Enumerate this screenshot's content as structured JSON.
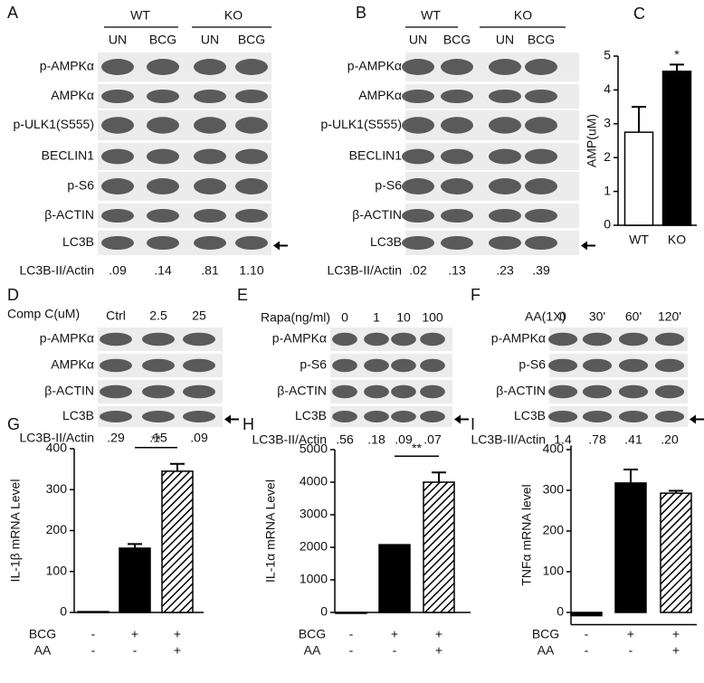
{
  "blots": [
    {
      "letter": "A",
      "groups": [
        "WT",
        "KO"
      ],
      "lanes": [
        "UN",
        "BCG",
        "UN",
        "BCG"
      ],
      "rows": [
        "p-AMPKα",
        "AMPKα",
        "p-ULK1(S555)",
        "BECLIN1",
        "p-S6",
        "β-ACTIN",
        "LC3B"
      ],
      "quant_label": "LC3B-II/Actin",
      "quant": [
        ".09",
        ".14",
        ".81",
        "1.10"
      ]
    },
    {
      "letter": "B",
      "groups": [
        "WT",
        "KO"
      ],
      "lanes": [
        "UN",
        "BCG",
        "UN",
        "BCG"
      ],
      "rows": [
        "p-AMPKα",
        "AMPKα",
        "p-ULK1(S555)",
        "BECLIN1",
        "p-S6",
        "β-ACTIN",
        "LC3B"
      ],
      "quant_label": "LC3B-II/Actin",
      "quant": [
        ".02",
        ".13",
        ".23",
        ".39"
      ]
    },
    {
      "letter": "D",
      "treatment": "Comp C(uM)",
      "lanes": [
        "Ctrl",
        "2.5",
        "25"
      ],
      "rows": [
        "p-AMPKα",
        "AMPKα",
        "β-ACTIN",
        "LC3B"
      ],
      "quant_label": "LC3B-II/Actin",
      "quant": [
        ".29",
        ".15",
        ".09"
      ]
    },
    {
      "letter": "E",
      "treatment": "Rapa(ng/ml)",
      "lanes": [
        "0",
        "1",
        "10",
        "100"
      ],
      "rows": [
        "p-AMPKα",
        "p-S6",
        "β-ACTIN",
        "LC3B"
      ],
      "quant_label": "LC3B-II/Actin",
      "quant": [
        ".56",
        ".18",
        ".09",
        ".07"
      ]
    },
    {
      "letter": "F",
      "treatment": "AA(1X)",
      "lanes": [
        "0",
        "30'",
        "60'",
        "120'"
      ],
      "rows": [
        "p-AMPKα",
        "p-S6",
        "β-ACTIN",
        "LC3B"
      ],
      "quant_label": "LC3B-II/Actin",
      "quant": [
        "1.4",
        ".78",
        ".41",
        ".20"
      ]
    }
  ],
  "chart_data": [
    {
      "type": "bar",
      "panel": "C",
      "y_label": "AMP(uM)",
      "categories": [
        "WT",
        "KO"
      ],
      "values": [
        2.75,
        4.55
      ],
      "errors": [
        0.75,
        0.2
      ],
      "colors": [
        "#ffffff",
        "#000000"
      ],
      "hatched": [
        false,
        false
      ],
      "annotation": "*",
      "ylim": [
        0,
        5
      ],
      "yticks": [
        0,
        1,
        2,
        3,
        4,
        5
      ]
    },
    {
      "type": "bar",
      "panel": "G",
      "y_label": "IL-1β mRNA Level",
      "categories": [
        null,
        null,
        null
      ],
      "values": [
        2,
        157,
        345
      ],
      "errors": [
        null,
        10,
        18
      ],
      "colors": [
        "#000000",
        "#000000",
        "#000000"
      ],
      "hatched": [
        false,
        false,
        true
      ],
      "conditions": [
        {
          "name": "BCG",
          "values": [
            "-",
            "+",
            "+"
          ]
        },
        {
          "name": "AA",
          "values": [
            "-",
            "-",
            "+"
          ]
        }
      ],
      "annotation": "**",
      "ylim": [
        0,
        400
      ],
      "yticks": [
        0,
        100,
        200,
        300,
        400
      ]
    },
    {
      "type": "bar",
      "panel": "H",
      "y_label": "IL-1α mRNA Level",
      "categories": [
        null,
        null,
        null
      ],
      "values": [
        0,
        2080,
        4000
      ],
      "errors": [
        null,
        null,
        300
      ],
      "colors": [
        "#000000",
        "#000000",
        "#000000"
      ],
      "hatched": [
        false,
        false,
        true
      ],
      "conditions": [
        {
          "name": "BCG",
          "values": [
            "-",
            "+",
            "+"
          ]
        },
        {
          "name": "AA",
          "values": [
            "-",
            "-",
            "+"
          ]
        }
      ],
      "annotation": "**",
      "ylim": [
        0,
        5000
      ],
      "yticks": [
        0,
        1000,
        2000,
        3000,
        4000,
        5000
      ]
    },
    {
      "type": "bar",
      "panel": "I",
      "y_label": "TNFα mRNA level",
      "categories": [
        null,
        null,
        null
      ],
      "values": [
        -8,
        318,
        293
      ],
      "errors": [
        null,
        33,
        6
      ],
      "colors": [
        "#000000",
        "#000000",
        "#000000"
      ],
      "hatched": [
        false,
        false,
        true
      ],
      "conditions": [
        {
          "name": "BCG",
          "values": [
            "-",
            "+",
            "+"
          ]
        },
        {
          "name": "AA",
          "values": [
            "-",
            "-",
            "+"
          ]
        }
      ],
      "ylim": [
        -30,
        410
      ],
      "yticks": [
        0,
        100,
        200,
        300,
        400
      ]
    }
  ]
}
